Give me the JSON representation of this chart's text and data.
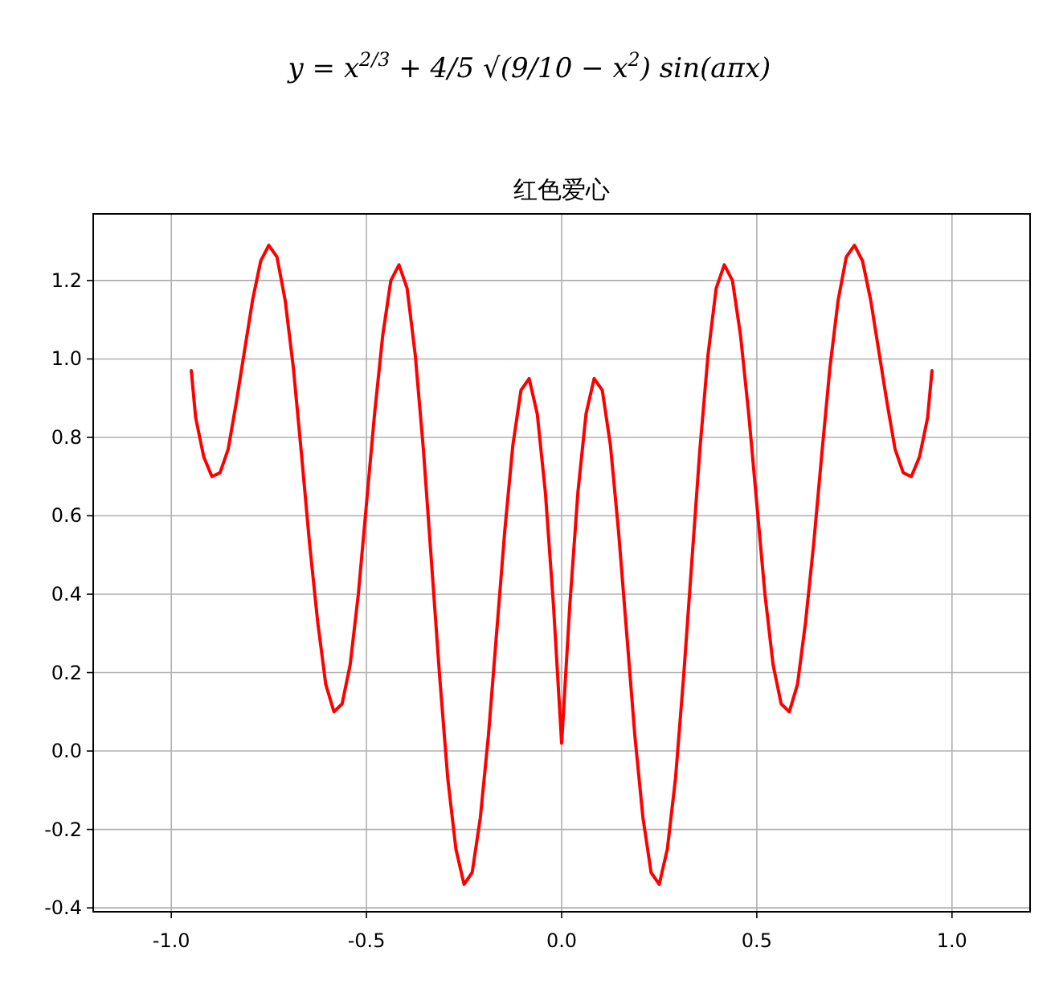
{
  "chart_data": {
    "type": "line",
    "title": "红色爱心",
    "annotations": [
      "y = x$^{2/3}$ + 4/5 √(9/10 − x$^{2}$) sin(aπx)"
    ],
    "xlim": [
      -1.2,
      1.2
    ],
    "ylim": [
      -0.41,
      1.37
    ],
    "xticks": [
      {
        "value": -1,
        "label": "-1.0"
      },
      {
        "value": -0.5,
        "label": "-0.5"
      },
      {
        "value": 0,
        "label": "0.0"
      },
      {
        "value": 0.5,
        "label": "0.5"
      },
      {
        "value": 1,
        "label": "1.0"
      }
    ],
    "yticks": [
      {
        "value": -0.4,
        "label": "-0.4"
      },
      {
        "value": -0.2,
        "label": "-0.2"
      },
      {
        "value": 0,
        "label": "0.0"
      },
      {
        "value": 0.2,
        "label": "0.2"
      },
      {
        "value": 0.4,
        "label": "0.4"
      },
      {
        "value": 0.6,
        "label": "0.6"
      },
      {
        "value": 0.8,
        "label": "0.8"
      },
      {
        "value": 1,
        "label": "1.0"
      },
      {
        "value": 1.2,
        "label": "1.2"
      }
    ],
    "grid": true,
    "marker": "none",
    "line_style": "solid",
    "series": [
      {
        "color": "#ff0000",
        "x": [
          -0.9487,
          -0.9375,
          -0.9167,
          -0.8958,
          -0.875,
          -0.8542,
          -0.8333,
          -0.8125,
          -0.7917,
          -0.7708,
          -0.75,
          -0.7292,
          -0.7083,
          -0.6875,
          -0.6667,
          -0.6458,
          -0.625,
          -0.6042,
          -0.5833,
          -0.5625,
          -0.5417,
          -0.5208,
          -0.5,
          -0.4792,
          -0.4583,
          -0.4375,
          -0.4167,
          -0.3958,
          -0.375,
          -0.3542,
          -0.3333,
          -0.3125,
          -0.2917,
          -0.2708,
          -0.25,
          -0.2292,
          -0.2083,
          -0.1875,
          -0.1667,
          -0.1458,
          -0.125,
          -0.1042,
          -0.0833,
          -0.0625,
          -0.0417,
          -0.0208,
          0,
          0.0208,
          0.0417,
          0.0625,
          0.0833,
          0.1042,
          0.125,
          0.1458,
          0.1667,
          0.1875,
          0.2083,
          0.2292,
          0.25,
          0.2708,
          0.2917,
          0.3125,
          0.3333,
          0.3542,
          0.375,
          0.3958,
          0.4167,
          0.4375,
          0.4583,
          0.4792,
          0.5,
          0.5208,
          0.5417,
          0.5625,
          0.5833,
          0.6042,
          0.625,
          0.6458,
          0.6667,
          0.6875,
          0.7083,
          0.7292,
          0.75,
          0.7708,
          0.7917,
          0.8125,
          0.8333,
          0.8542,
          0.875,
          0.8958,
          0.9167,
          0.9375,
          0.9487
        ],
        "values": [
          0.97,
          0.85,
          0.75,
          0.7,
          0.71,
          0.77,
          0.89,
          1.02,
          1.15,
          1.25,
          1.29,
          1.26,
          1.15,
          0.98,
          0.76,
          0.53,
          0.33,
          0.17,
          0.1,
          0.12,
          0.22,
          0.4,
          0.63,
          0.86,
          1.06,
          1.2,
          1.24,
          1.18,
          1.01,
          0.77,
          0.48,
          0.19,
          -0.07,
          -0.25,
          -0.34,
          -0.31,
          -0.17,
          0.04,
          0.3,
          0.56,
          0.78,
          0.92,
          0.95,
          0.86,
          0.66,
          0.37,
          0.02,
          0.37,
          0.66,
          0.86,
          0.95,
          0.92,
          0.78,
          0.56,
          0.3,
          0.04,
          -0.17,
          -0.31,
          -0.34,
          -0.25,
          -0.07,
          0.19,
          0.48,
          0.77,
          1.01,
          1.18,
          1.24,
          1.2,
          1.06,
          0.86,
          0.63,
          0.4,
          0.22,
          0.12,
          0.1,
          0.17,
          0.33,
          0.53,
          0.76,
          0.98,
          1.15,
          1.26,
          1.29,
          1.25,
          1.15,
          1.02,
          0.89,
          0.77,
          0.71,
          0.7,
          0.75,
          0.85,
          0.97
        ]
      }
    ]
  }
}
